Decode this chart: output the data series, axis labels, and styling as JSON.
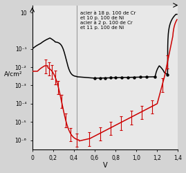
{
  "xlabel": "V",
  "ylabel": "A/cm²",
  "xlim": [
    0,
    1.4
  ],
  "bg_color": "#d4d4d4",
  "plot_bg": "#e8e8e8",
  "text1": "acier à 18 p. 100 de Cr\net 10 p. 100 de Ni",
  "text2": "acier à 2 p. 100 de Cr\net 11 p. 100 de Ni",
  "vline_x": 0.43,
  "xtick_vals": [
    0,
    0.2,
    0.4,
    0.6,
    0.8,
    1.0,
    1.2,
    1.4
  ],
  "xtick_labels": [
    "0",
    "0,2",
    "0,4",
    "0,6",
    "0,8",
    "1,0",
    "1,2",
    "1,4"
  ],
  "ytick_vals": [
    1e-06,
    1e-05,
    0.0001,
    0.001,
    0.01,
    0.1,
    10
  ],
  "ytick_labels": [
    "10⁻⁶",
    "10⁻⁵",
    "10⁻⁴",
    "10⁻³",
    "10⁻²",
    "10⁻¹",
    "10"
  ]
}
